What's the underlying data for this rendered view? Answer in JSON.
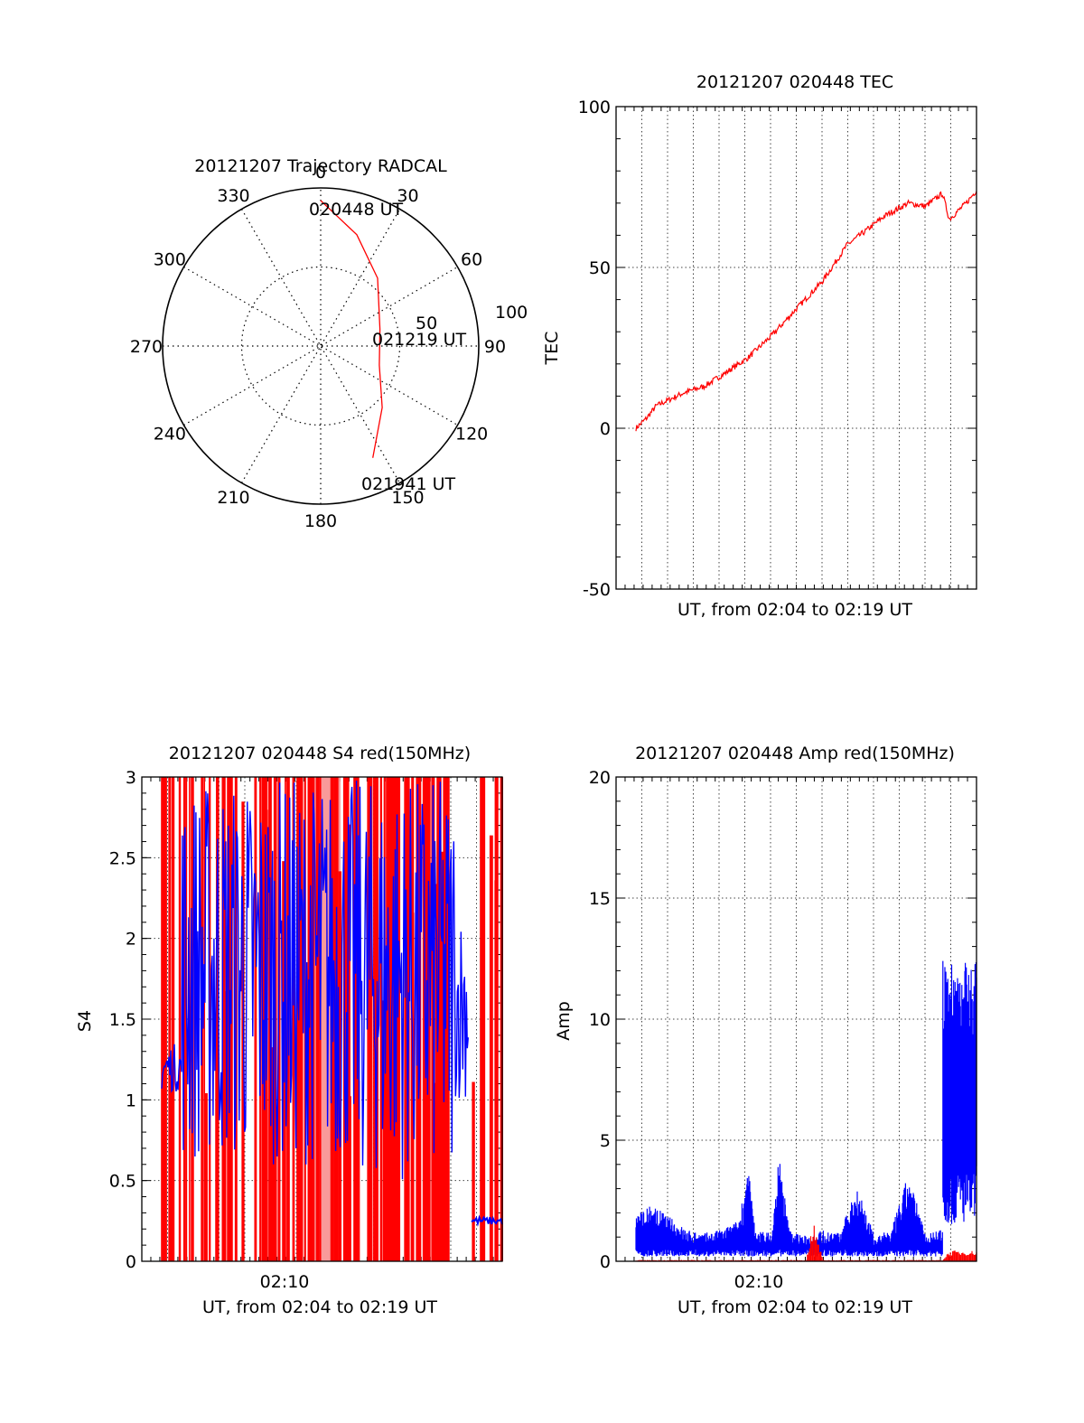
{
  "chart_data": [
    {
      "type": "polar",
      "title": "20121207 Trajectory RADCAL",
      "angle_labels": [
        "0",
        "30",
        "60",
        "90",
        "120",
        "150",
        "180",
        "210",
        "240",
        "270",
        "300",
        "330"
      ],
      "radius_labels": [
        "50",
        "100"
      ],
      "track_color": "#ff0000",
      "track": [
        {
          "azimuth": 0,
          "radius": 92
        },
        {
          "azimuth": 18,
          "radius": 74
        },
        {
          "azimuth": 40,
          "radius": 56
        },
        {
          "azimuth": 74,
          "radius": 39
        },
        {
          "azimuth": 108,
          "radius": 39
        },
        {
          "azimuth": 135,
          "radius": 55
        },
        {
          "azimuth": 155,
          "radius": 78
        }
      ],
      "annotations": [
        {
          "text": "020448 UT"
        },
        {
          "text": "021219 UT"
        },
        {
          "text": "021941 UT"
        }
      ]
    },
    {
      "type": "line",
      "title": "20121207 020448 TEC",
      "xlabel": "UT, from 02:04 to 02:19 UT",
      "ylabel": "TEC",
      "ylim": [
        -50,
        100
      ],
      "yticks": [
        "-50",
        "0",
        "50",
        "100"
      ],
      "grid": true,
      "series": [
        {
          "color": "#ff0000",
          "x": [
            0,
            0.03,
            0.06,
            0.1,
            0.14,
            0.2,
            0.26,
            0.33,
            0.4,
            0.47,
            0.55,
            0.62,
            0.67,
            0.73,
            0.8,
            0.85,
            0.9,
            0.92,
            0.97,
            1.0
          ],
          "y": [
            0,
            3,
            7,
            9,
            11,
            13,
            17,
            22,
            29,
            37,
            46,
            57,
            61,
            66,
            70,
            69,
            73,
            65,
            70,
            74
          ]
        }
      ]
    },
    {
      "type": "bar",
      "title": "20121207 020448 S4 red(150MHz)",
      "xlabel": "UT, from 02:04 to 02:19 UT",
      "ylabel": "S4",
      "ylim": [
        0,
        3
      ],
      "yticks": [
        "0",
        "0.5",
        "1",
        "1.5",
        "2",
        "2.5",
        "3"
      ],
      "xtick_label": "02:10",
      "grid": true,
      "colors": {
        "red": "#ff0000",
        "blue": "#0000ff",
        "band": "#f99a9a"
      }
    },
    {
      "type": "line",
      "title": "20121207 020448 Amp red(150MHz)",
      "xlabel": "UT, from 02:04 to 02:19 UT",
      "ylabel": "Amp",
      "ylim": [
        0,
        20
      ],
      "yticks": [
        "0",
        "5",
        "10",
        "15",
        "20"
      ],
      "xtick_label": "02:10",
      "grid": true,
      "series": [
        {
          "color": "#0000ff",
          "x": [
            0,
            0.05,
            0.1,
            0.15,
            0.2,
            0.25,
            0.3,
            0.33,
            0.35,
            0.4,
            0.42,
            0.45,
            0.5,
            0.55,
            0.6,
            0.65,
            0.7,
            0.75,
            0.8,
            0.85,
            0.9,
            0.92,
            0.95,
            1.0
          ],
          "y": [
            1.5,
            1.8,
            1.4,
            1.0,
            0.9,
            1.0,
            1.3,
            3.0,
            1.0,
            0.9,
            3.5,
            1.0,
            0.8,
            1.0,
            0.9,
            2.5,
            0.8,
            1.0,
            2.8,
            0.9,
            1.0,
            1.0,
            6.0,
            6.0
          ]
        },
        {
          "color": "#ff0000",
          "x": [
            0,
            0.5,
            0.52,
            0.55,
            0.9,
            0.92,
            1.0
          ],
          "y": [
            0.05,
            0.05,
            1.5,
            0.05,
            0.05,
            0.4,
            0.4
          ]
        }
      ]
    }
  ]
}
